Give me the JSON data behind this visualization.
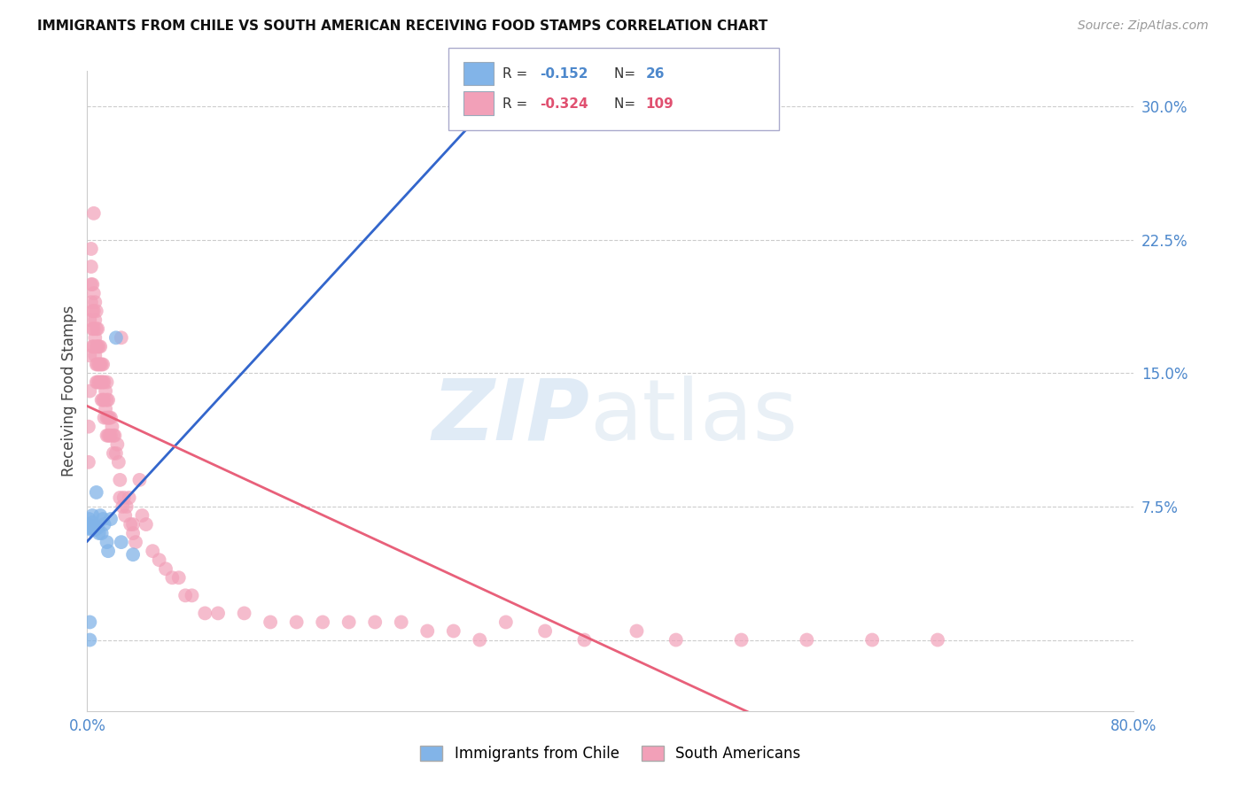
{
  "title": "IMMIGRANTS FROM CHILE VS SOUTH AMERICAN RECEIVING FOOD STAMPS CORRELATION CHART",
  "source": "Source: ZipAtlas.com",
  "ylabel": "Receiving Food Stamps",
  "xlim": [
    0.0,
    0.8
  ],
  "ylim": [
    -0.04,
    0.32
  ],
  "chile_color": "#82b4e8",
  "south_color": "#f2a0b8",
  "chile_line_color": "#3366cc",
  "south_line_color": "#e8607a",
  "dashed_line_color": "#aac8e8",
  "legend_chile_R": "-0.152",
  "legend_chile_N": "26",
  "legend_south_R": "-0.324",
  "legend_south_N": "109",
  "chile_x": [
    0.0005,
    0.001,
    0.0015,
    0.002,
    0.002,
    0.0025,
    0.003,
    0.003,
    0.004,
    0.004,
    0.005,
    0.005,
    0.006,
    0.007,
    0.008,
    0.009,
    0.01,
    0.011,
    0.012,
    0.013,
    0.015,
    0.016,
    0.018,
    0.022,
    0.026,
    0.035
  ],
  "chile_y": [
    0.065,
    0.063,
    0.068,
    0.0,
    0.01,
    0.063,
    0.064,
    0.062,
    0.07,
    0.066,
    0.064,
    0.063,
    0.062,
    0.083,
    0.063,
    0.06,
    0.07,
    0.06,
    0.068,
    0.065,
    0.055,
    0.05,
    0.068,
    0.17,
    0.055,
    0.048
  ],
  "sa_x": [
    0.001,
    0.001,
    0.002,
    0.002,
    0.002,
    0.003,
    0.003,
    0.003,
    0.003,
    0.004,
    0.004,
    0.004,
    0.004,
    0.005,
    0.005,
    0.005,
    0.005,
    0.005,
    0.006,
    0.006,
    0.006,
    0.006,
    0.007,
    0.007,
    0.007,
    0.007,
    0.007,
    0.008,
    0.008,
    0.008,
    0.008,
    0.009,
    0.009,
    0.009,
    0.01,
    0.01,
    0.01,
    0.011,
    0.011,
    0.011,
    0.012,
    0.012,
    0.012,
    0.013,
    0.013,
    0.013,
    0.014,
    0.014,
    0.015,
    0.015,
    0.015,
    0.015,
    0.016,
    0.016,
    0.016,
    0.017,
    0.017,
    0.018,
    0.018,
    0.019,
    0.02,
    0.02,
    0.021,
    0.022,
    0.023,
    0.024,
    0.025,
    0.025,
    0.026,
    0.027,
    0.028,
    0.029,
    0.03,
    0.032,
    0.033,
    0.035,
    0.035,
    0.037,
    0.04,
    0.042,
    0.045,
    0.05,
    0.055,
    0.06,
    0.065,
    0.07,
    0.075,
    0.08,
    0.09,
    0.1,
    0.12,
    0.14,
    0.16,
    0.18,
    0.2,
    0.22,
    0.24,
    0.26,
    0.28,
    0.3,
    0.32,
    0.35,
    0.38,
    0.42,
    0.45,
    0.5,
    0.55,
    0.6,
    0.65
  ],
  "sa_y": [
    0.12,
    0.1,
    0.18,
    0.16,
    0.14,
    0.22,
    0.21,
    0.2,
    0.19,
    0.2,
    0.185,
    0.175,
    0.165,
    0.24,
    0.195,
    0.185,
    0.175,
    0.165,
    0.19,
    0.18,
    0.17,
    0.16,
    0.185,
    0.175,
    0.165,
    0.155,
    0.145,
    0.175,
    0.165,
    0.155,
    0.145,
    0.165,
    0.155,
    0.145,
    0.165,
    0.155,
    0.145,
    0.155,
    0.145,
    0.135,
    0.155,
    0.145,
    0.135,
    0.145,
    0.135,
    0.125,
    0.14,
    0.13,
    0.145,
    0.135,
    0.125,
    0.115,
    0.135,
    0.125,
    0.115,
    0.125,
    0.115,
    0.125,
    0.115,
    0.12,
    0.115,
    0.105,
    0.115,
    0.105,
    0.11,
    0.1,
    0.09,
    0.08,
    0.17,
    0.075,
    0.08,
    0.07,
    0.075,
    0.08,
    0.065,
    0.065,
    0.06,
    0.055,
    0.09,
    0.07,
    0.065,
    0.05,
    0.045,
    0.04,
    0.035,
    0.035,
    0.025,
    0.025,
    0.015,
    0.015,
    0.015,
    0.01,
    0.01,
    0.01,
    0.01,
    0.01,
    0.01,
    0.005,
    0.005,
    0.0,
    0.01,
    0.005,
    0.0,
    0.005,
    0.0,
    0.0,
    0.0,
    0.0,
    0.0
  ]
}
